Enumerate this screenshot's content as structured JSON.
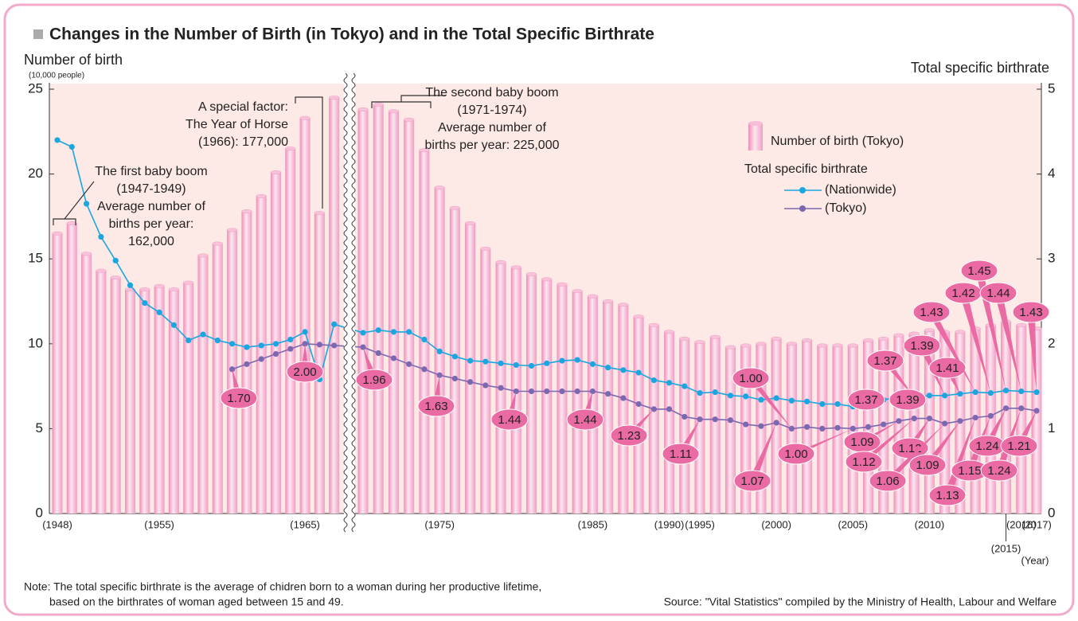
{
  "chart_data": {
    "type": "bar",
    "title": "Changes in the Number of Birth (in Tokyo) and in the Total Specific Birthrate",
    "y_label": "Number of birth",
    "y_unit": "(10,000 people)",
    "y2_label": "Total specific birthrate",
    "x_label": "(Year)",
    "legend_title": "Total specific birthrate",
    "categories": [
      "(1948)",
      null,
      null,
      null,
      null,
      null,
      null,
      "(1955)",
      null,
      null,
      null,
      null,
      null,
      null,
      null,
      null,
      null,
      "(1965)",
      null,
      null,
      null,
      null,
      null,
      null,
      null,
      "(1975)",
      null,
      null,
      null,
      null,
      null,
      null,
      null,
      null,
      null,
      "(1985)",
      null,
      null,
      null,
      null,
      "(1990)",
      null,
      "(1995)",
      null,
      null,
      null,
      null,
      "(2000)",
      null,
      null,
      null,
      null,
      "(2005)",
      null,
      null,
      null,
      null,
      "(2010)",
      null,
      null,
      null,
      null,
      "(2015)",
      "(2016)",
      "(2017)"
    ],
    "series": [
      {
        "name": "Number of birth (Tokyo)",
        "type": "bar",
        "color": "#f29cc2",
        "values": [
          16.5,
          17.1,
          15.3,
          14.3,
          13.9,
          13.2,
          13.2,
          13.4,
          13.2,
          13.6,
          15.2,
          15.9,
          16.7,
          17.8,
          18.7,
          20.1,
          21.5,
          23.3,
          17.7,
          24.5,
          23.8,
          24.1,
          23.7,
          23.2,
          21.4,
          19.2,
          18.0,
          17.1,
          15.6,
          14.8,
          14.5,
          14.1,
          13.8,
          13.5,
          13.1,
          12.8,
          12.5,
          12.3,
          11.6,
          11.1,
          10.7,
          10.3,
          10.1,
          10.4,
          9.8,
          9.9,
          10.0,
          10.3,
          10.0,
          10.2,
          9.9,
          9.9,
          9.9,
          10.2,
          10.3,
          10.5,
          10.6,
          10.8,
          10.7,
          10.7,
          10.9,
          11.1,
          11.3,
          11.1,
          10.9
        ]
      },
      {
        "name": "(Nationwide)",
        "type": "line",
        "axis": "y2",
        "color": "#1aa7df",
        "values": [
          4.4,
          4.32,
          3.65,
          3.26,
          2.98,
          2.69,
          2.48,
          2.37,
          2.22,
          2.04,
          2.11,
          2.04,
          2.0,
          1.96,
          1.98,
          2.0,
          2.05,
          2.14,
          1.58,
          2.23,
          2.13,
          2.16,
          2.14,
          2.14,
          2.05,
          1.91,
          1.85,
          1.8,
          1.79,
          1.77,
          1.75,
          1.74,
          1.77,
          1.8,
          1.81,
          1.76,
          1.72,
          1.69,
          1.66,
          1.57,
          1.54,
          1.5,
          1.42,
          1.43,
          1.39,
          1.38,
          1.34,
          1.36,
          1.33,
          1.32,
          1.29,
          1.29,
          1.26,
          1.32,
          1.34,
          1.37,
          1.37,
          1.39,
          1.39,
          1.41,
          1.43,
          1.42,
          1.45,
          1.44,
          1.43
        ],
        "value_labels": [
          null,
          null,
          null,
          null,
          null,
          null,
          null,
          null,
          null,
          null,
          null,
          null,
          null,
          null,
          null,
          null,
          null,
          null,
          null,
          null,
          null,
          null,
          null,
          null,
          null,
          null,
          null,
          null,
          null,
          null,
          null,
          null,
          null,
          null,
          null,
          null,
          null,
          null,
          null,
          null,
          null,
          null,
          null,
          null,
          null,
          null,
          null,
          null,
          null,
          null,
          null,
          null,
          null,
          null,
          null,
          "1.37",
          "1.37",
          "1.39",
          "1.39",
          "1.41",
          "1.43",
          "1.42",
          "1.45",
          "1.44",
          "1.43"
        ]
      },
      {
        "name": "(Tokyo)",
        "type": "line",
        "axis": "y2",
        "color": "#7b68b1",
        "values": [
          null,
          null,
          null,
          null,
          null,
          null,
          null,
          null,
          null,
          null,
          null,
          null,
          1.7,
          1.76,
          1.82,
          1.88,
          1.94,
          2.0,
          1.99,
          1.98,
          1.96,
          1.89,
          1.83,
          1.76,
          1.7,
          1.63,
          1.59,
          1.55,
          1.51,
          1.48,
          1.44,
          1.44,
          1.44,
          1.44,
          1.44,
          1.44,
          1.41,
          1.36,
          1.29,
          1.23,
          1.23,
          1.14,
          1.11,
          1.11,
          1.1,
          1.05,
          1.03,
          1.07,
          1.0,
          1.02,
          1.0,
          1.01,
          1.0,
          1.02,
          1.05,
          1.09,
          1.12,
          1.12,
          1.06,
          1.09,
          1.13,
          1.15,
          1.24,
          1.24,
          1.21
        ],
        "value_labels": [
          null,
          null,
          null,
          null,
          null,
          null,
          null,
          null,
          null,
          null,
          null,
          null,
          "1.70",
          null,
          null,
          null,
          null,
          "2.00",
          null,
          null,
          "1.96",
          null,
          null,
          null,
          null,
          "1.63",
          null,
          null,
          null,
          null,
          "1.44",
          null,
          null,
          null,
          null,
          "1.44",
          null,
          null,
          null,
          "1.23",
          null,
          null,
          "1.11",
          null,
          null,
          null,
          null,
          "1.07",
          "1.00",
          null,
          null,
          null,
          "1.00",
          null,
          null,
          "1.09",
          "1.12",
          "1.12",
          "1.06",
          "1.09",
          "1.13",
          "1.15",
          "1.24",
          "1.24",
          "1.21"
        ]
      }
    ],
    "ylim": [
      0,
      25
    ],
    "yticks": [
      0,
      5,
      10,
      15,
      20,
      25
    ],
    "y2lim": [
      0,
      5
    ],
    "y2ticks": [
      0,
      1,
      2,
      3,
      4,
      5
    ],
    "annotations": [
      {
        "lines": [
          "The first baby boom",
          "(1947-1949)",
          "Average number of",
          "births per year:",
          "162,000"
        ]
      },
      {
        "lines": [
          "A special factor:",
          "The Year of Horse",
          "(1966): 177,000"
        ]
      },
      {
        "lines": [
          "The second baby boom",
          "(1971-1974)",
          "Average number of",
          "births per year: 225,000"
        ]
      }
    ],
    "note": [
      "Note: The total specific birthrate is the average of chidren born to a woman during her productive lifetime,",
      "based on the birthrates of woman aged between 15 and 49."
    ],
    "source": "Source: \"Vital Statistics\" compiled by the Ministry of Health, Labour and Welfare"
  }
}
